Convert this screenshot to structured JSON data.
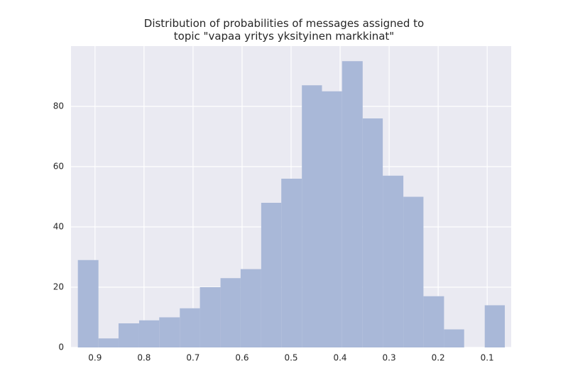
{
  "chart_data": {
    "type": "histogram",
    "title": "Distribution of probabilities of messages assigned to\ntopic \"vapaa yritys yksityinen markkinat\"",
    "bins": [
      0.935,
      0.893,
      0.852,
      0.81,
      0.769,
      0.727,
      0.686,
      0.644,
      0.603,
      0.561,
      0.52,
      0.478,
      0.437,
      0.396,
      0.354,
      0.313,
      0.271,
      0.23,
      0.188,
      0.147,
      0.105,
      0.064
    ],
    "counts": [
      29,
      3,
      8,
      9,
      10,
      13,
      20,
      23,
      26,
      48,
      56,
      87,
      85,
      95,
      76,
      57,
      50,
      17,
      6,
      0,
      14
    ],
    "color": "#a9b8d8",
    "background": "#eaeaf2",
    "xlim": [
      0.949,
      0.051
    ],
    "xticks": [
      0.9,
      0.8,
      0.7,
      0.6,
      0.5,
      0.4,
      0.3,
      0.2,
      0.1
    ],
    "ylim": [
      0,
      100
    ],
    "yticks": [
      0,
      20,
      40,
      60,
      80
    ],
    "grid": true
  }
}
